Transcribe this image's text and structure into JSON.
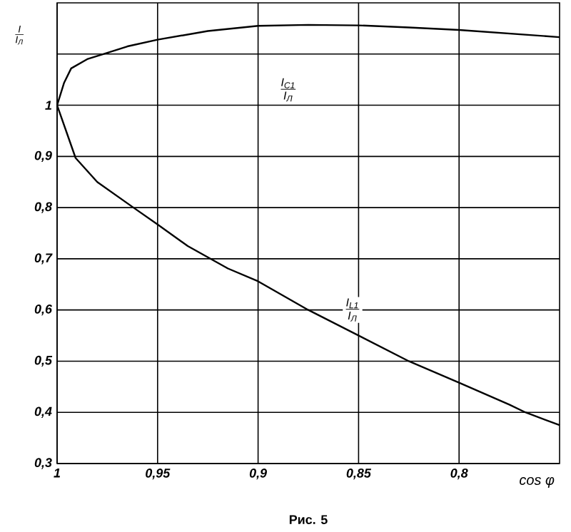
{
  "chart_data": {
    "type": "line",
    "xlabel": "cos φ",
    "ylabel": "\\frac{\\mathit{I}}{\\mathit{I}_{\\textit{Л}}}",
    "xlim": [
      1,
      0.75
    ],
    "ylim": [
      0.3,
      1.2
    ],
    "xticks": [
      1,
      {
        "value": 0.95,
        "label": "0,95"
      },
      {
        "value": 0.9,
        "label": "0,9"
      },
      {
        "value": 0.85,
        "label": "0,85"
      },
      {
        "value": 0.8,
        "label": "0,8"
      }
    ],
    "yticks": [
      {
        "value": 0.3,
        "label": "0,3"
      },
      {
        "value": 0.4,
        "label": "0,4"
      },
      {
        "value": 0.5,
        "label": "0,5"
      },
      {
        "value": 0.6,
        "label": "0,6"
      },
      {
        "value": 0.7,
        "label": "0,7"
      },
      {
        "value": 0.8,
        "label": "0,8"
      },
      {
        "value": 0.9,
        "label": "0,9"
      },
      1,
      {
        "value": 1.1,
        "label": null
      }
    ],
    "grid": true,
    "marker": "none",
    "line_style": "solid",
    "series": [
      {
        "color": "#000000",
        "x": [
          1,
          0.9965,
          0.993,
          0.985,
          0.977,
          0.965,
          0.95,
          0.925,
          0.9,
          0.875,
          0.85,
          0.825,
          0.8,
          0.775,
          0.75
        ],
        "values": [
          1,
          1.044,
          1.072,
          1.09,
          1.1,
          1.115,
          1.128,
          1.145,
          1.155,
          1.157,
          1.156,
          1.152,
          1.147,
          1.14,
          1.133
        ]
      },
      {
        "color": "#000000",
        "x": [
          1,
          0.995,
          0.9908,
          0.98,
          0.962,
          0.95,
          0.935,
          0.915,
          0.9,
          0.875,
          0.85,
          0.825,
          0.8,
          0.775,
          0.767,
          0.75
        ],
        "values": [
          1,
          0.944,
          0.897,
          0.85,
          0.8,
          0.767,
          0.725,
          0.681,
          0.656,
          0.6,
          0.55,
          0.5,
          0.458,
          0.415,
          0.4,
          0.375
        ]
      }
    ],
    "annotations": [
      {
        "text": "\\frac{\\mathit{I}_{\\mathit{C1}}}{\\mathit{I}_{\\textit{Л}}}",
        "x": 0.885,
        "y": 1.03
      },
      {
        "text": "\\frac{\\mathit{I}_{\\mathit{L1}}}{\\mathit{I}_{\\textit{Л}}}",
        "x": 0.853,
        "y": 0.6
      },
      "Рис. 5"
    ]
  }
}
